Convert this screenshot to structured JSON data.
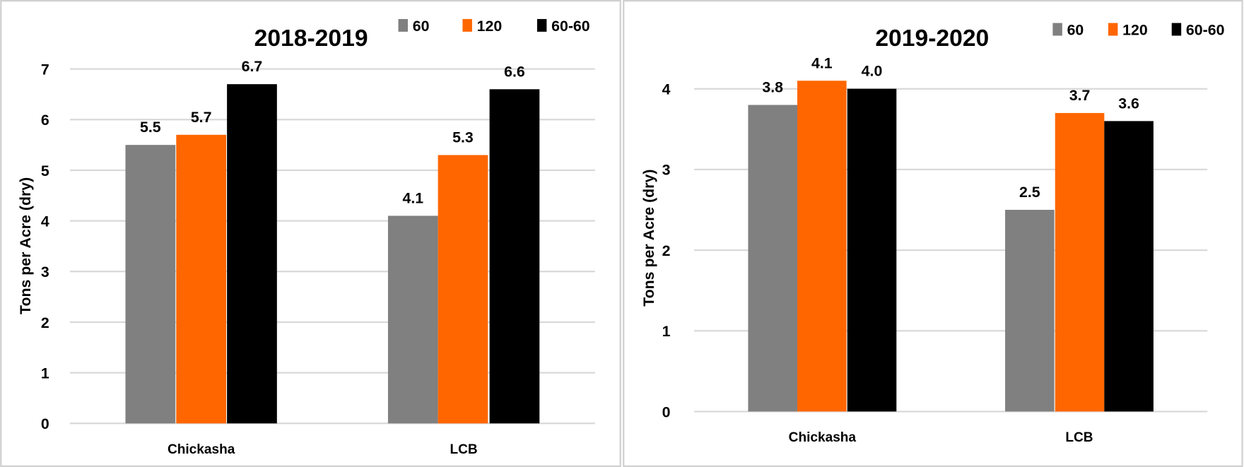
{
  "colors": {
    "60": "#808080",
    "120": "#FF6600",
    "60-60": "#000000",
    "grid": "#D9D9D9",
    "border": "#D0D0D0"
  },
  "chart_data": [
    {
      "type": "bar",
      "title": "2018-2019",
      "ylabel": "Tons per Acre (dry)",
      "xlabel": "",
      "ylim": [
        0,
        7
      ],
      "yticks": [
        0,
        1,
        2,
        3,
        4,
        5,
        6,
        7
      ],
      "grid": true,
      "legend_position": "top-right",
      "categories": [
        "Chickasha",
        "LCB"
      ],
      "series": [
        {
          "name": "60",
          "values": [
            5.5,
            4.1
          ],
          "labels": [
            "5.5",
            "4.1"
          ]
        },
        {
          "name": "120",
          "values": [
            5.7,
            5.3
          ],
          "labels": [
            "5.7",
            "5.3"
          ]
        },
        {
          "name": "60-60",
          "values": [
            6.7,
            6.6
          ],
          "labels": [
            "6.7",
            "6.6"
          ]
        }
      ]
    },
    {
      "type": "bar",
      "title": "2019-2020",
      "ylabel": "Tons per Acre (dry)",
      "xlabel": "",
      "ylim": [
        0,
        4
      ],
      "yticks": [
        0,
        1,
        2,
        3,
        4
      ],
      "grid": true,
      "legend_position": "top-right",
      "categories": [
        "Chickasha",
        "LCB"
      ],
      "series": [
        {
          "name": "60",
          "values": [
            3.8,
            2.5
          ],
          "labels": [
            "3.8",
            "2.5"
          ]
        },
        {
          "name": "120",
          "values": [
            4.1,
            3.7
          ],
          "labels": [
            "4.1",
            "3.7"
          ]
        },
        {
          "name": "60-60",
          "values": [
            4.0,
            3.6
          ],
          "labels": [
            "4.0",
            "3.6"
          ]
        }
      ]
    }
  ]
}
